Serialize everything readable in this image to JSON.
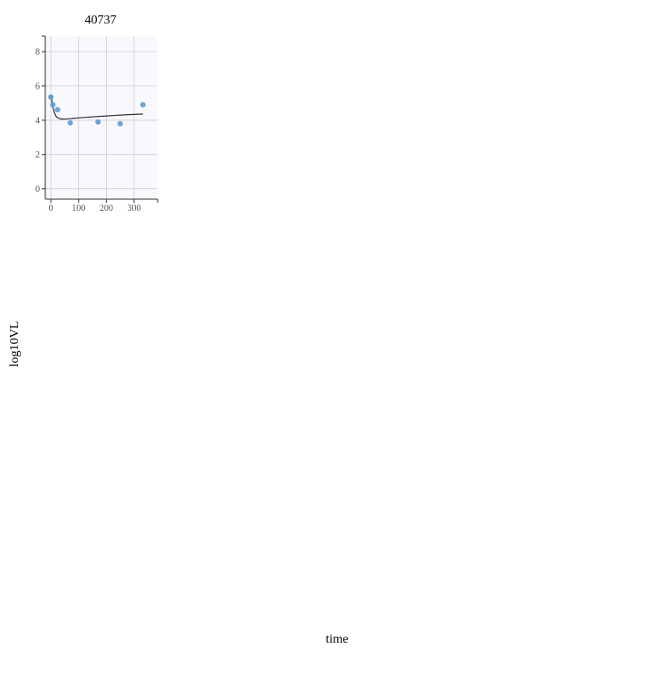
{
  "chart_data": {
    "type": "scatter",
    "title": "40737",
    "xlabel": "time",
    "ylabel": "log10VL",
    "xlim": [
      -20,
      385
    ],
    "ylim": [
      -0.6,
      8.9
    ],
    "x_ticks": [
      "0",
      "100",
      "200",
      "300"
    ],
    "y_ticks": [
      "0",
      "2",
      "4",
      "6",
      "8"
    ],
    "grid": true,
    "series": [
      {
        "kind": "points",
        "color": "#5b9bd5",
        "x": [
          0,
          7,
          24,
          70,
          170,
          250,
          332
        ],
        "y": [
          5.35,
          4.9,
          4.62,
          3.85,
          3.9,
          3.8,
          4.9
        ]
      },
      {
        "kind": "fit-line",
        "color": "#333333",
        "x": [
          0,
          5,
          10,
          15,
          20,
          30,
          40,
          60,
          100,
          150,
          200,
          250,
          300,
          332
        ],
        "y": [
          5.5,
          5.0,
          4.6,
          4.35,
          4.2,
          4.1,
          4.07,
          4.08,
          4.14,
          4.2,
          4.25,
          4.3,
          4.34,
          4.36
        ]
      }
    ],
    "colors": {
      "panel_background": "#f9f9fd",
      "grid": "#c8c8c8",
      "axis": "#333333"
    }
  }
}
